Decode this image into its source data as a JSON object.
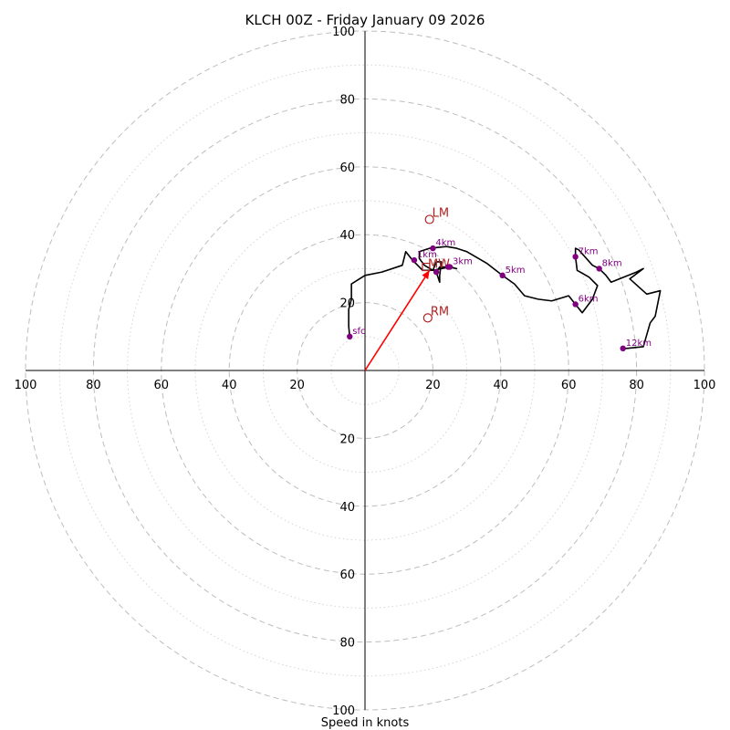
{
  "chart_data": {
    "type": "hodograph",
    "title": "KLCH 00Z - Friday January 09 2026",
    "xlabel": "Speed in knots",
    "range": 100,
    "ring_major_step": 20,
    "ring_minor_step": 10,
    "tick_labels": [
      "100",
      "80",
      "60",
      "40",
      "20",
      "20",
      "40",
      "60",
      "80",
      "100"
    ],
    "tick_values": [
      -100,
      -80,
      -60,
      -40,
      -20,
      20,
      40,
      60,
      80,
      100
    ],
    "trace": [
      [
        -4.5,
        10
      ],
      [
        -4.8,
        13
      ],
      [
        -4.8,
        18
      ],
      [
        -4.0,
        21
      ],
      [
        -4.0,
        25.5
      ],
      [
        0,
        28
      ],
      [
        5,
        29
      ],
      [
        11,
        31
      ],
      [
        12,
        35
      ],
      [
        14,
        32.5
      ],
      [
        17,
        29.5
      ],
      [
        20,
        29.5
      ],
      [
        21,
        32
      ],
      [
        22.5,
        32
      ],
      [
        22,
        28
      ],
      [
        22,
        26
      ],
      [
        21,
        29
      ],
      [
        22,
        30.5
      ],
      [
        24.5,
        30.5
      ],
      [
        27,
        30
      ],
      [
        25,
        30.5
      ],
      [
        20,
        29.5
      ],
      [
        17.5,
        31
      ],
      [
        16,
        33
      ],
      [
        16,
        35
      ],
      [
        19,
        36
      ],
      [
        24,
        36.5
      ],
      [
        27,
        36
      ],
      [
        30,
        35
      ],
      [
        36,
        31.5
      ],
      [
        40.5,
        28
      ],
      [
        44,
        25.5
      ],
      [
        47,
        22
      ],
      [
        51,
        21
      ],
      [
        55,
        20.5
      ],
      [
        60,
        22
      ],
      [
        62,
        19.5
      ],
      [
        64,
        17
      ],
      [
        67,
        21
      ],
      [
        68.5,
        25
      ],
      [
        66,
        27.5
      ],
      [
        62.5,
        29.5
      ],
      [
        62,
        33.5
      ],
      [
        62,
        36
      ],
      [
        63,
        35.5
      ],
      [
        67,
        31
      ],
      [
        69,
        30
      ],
      [
        71,
        28
      ],
      [
        72.5,
        26
      ],
      [
        80,
        29
      ],
      [
        82,
        30
      ],
      [
        78,
        27
      ],
      [
        83,
        22.5
      ],
      [
        87,
        23.5
      ],
      [
        85.5,
        16
      ],
      [
        84,
        14
      ],
      [
        82,
        7
      ],
      [
        77,
        6.5
      ],
      [
        76,
        6.5
      ]
    ],
    "height_markers": [
      {
        "label": "sfc",
        "u": -4.5,
        "v": 10
      },
      {
        "label": "1km",
        "u": 14.5,
        "v": 32.5
      },
      {
        "label": "",
        "u": 21,
        "v": 29
      },
      {
        "label": "",
        "u": 24.5,
        "v": 30.5
      },
      {
        "label": "3km",
        "u": 25,
        "v": 30.5
      },
      {
        "label": "4km",
        "u": 20,
        "v": 36
      },
      {
        "label": "5km",
        "u": 40.5,
        "v": 28
      },
      {
        "label": "6km",
        "u": 62,
        "v": 19.5
      },
      {
        "label": "7km",
        "u": 62,
        "v": 33.5
      },
      {
        "label": "8km",
        "u": 69,
        "v": 30
      },
      {
        "label": "12km",
        "u": 76,
        "v": 6.5
      }
    ],
    "storm_motions": [
      {
        "label": "LM",
        "u": 19,
        "v": 44.5
      },
      {
        "label": "RM",
        "u": 18.5,
        "v": 15.5
      }
    ],
    "mean_wind": {
      "label": "MW",
      "u": 18,
      "v": 30.5
    },
    "shear_vector": {
      "u": 19,
      "v": 29.5
    },
    "colors": {
      "trace": "#000000",
      "marker": "#800080",
      "storm_motion": "#b22222",
      "shear": "#ff0000",
      "ring": "#bdbdbd"
    }
  }
}
